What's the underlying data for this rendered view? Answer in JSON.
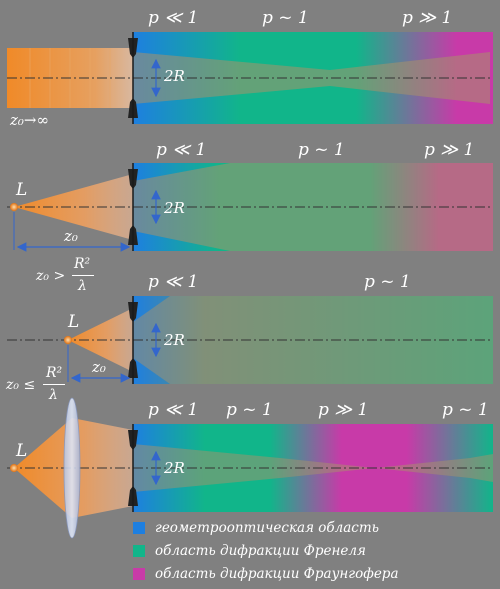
{
  "colors": {
    "geometric": "#1e7fe0",
    "fresnel": "#11b58a",
    "fraunhofer": "#c83aa8",
    "beam": "#f08a28",
    "background": "#808080"
  },
  "panels": [
    {
      "regions": [
        "p ≪ 1",
        "p ~ 1",
        "p ≫ 1"
      ],
      "aperture_label": "2R",
      "source_label": "z₀→∞"
    },
    {
      "regions": [
        "p ≪ 1",
        "p ~ 1",
        "p ≫ 1"
      ],
      "aperture_label": "2R",
      "source_label": "L",
      "distance_label": "z₀",
      "condition_left": "z₀ >",
      "condition_num": "R²",
      "condition_den": "λ"
    },
    {
      "regions": [
        "p ≪ 1",
        "p ~ 1"
      ],
      "aperture_label": "2R",
      "source_label": "L",
      "distance_label": "z₀",
      "condition_left": "z₀ ≤",
      "condition_num": "R²",
      "condition_den": "λ"
    },
    {
      "regions": [
        "p ≪ 1",
        "p ~ 1",
        "p ≫ 1",
        "p ~ 1"
      ],
      "aperture_label": "2R",
      "source_label": "L"
    }
  ],
  "legend": [
    {
      "color": "#1e7fe0",
      "label": "геометрооптическая область"
    },
    {
      "color": "#11b58a",
      "label": "область дифракции Френеля"
    },
    {
      "color": "#c83aa8",
      "label": "область дифракции Фраунгофера"
    }
  ]
}
